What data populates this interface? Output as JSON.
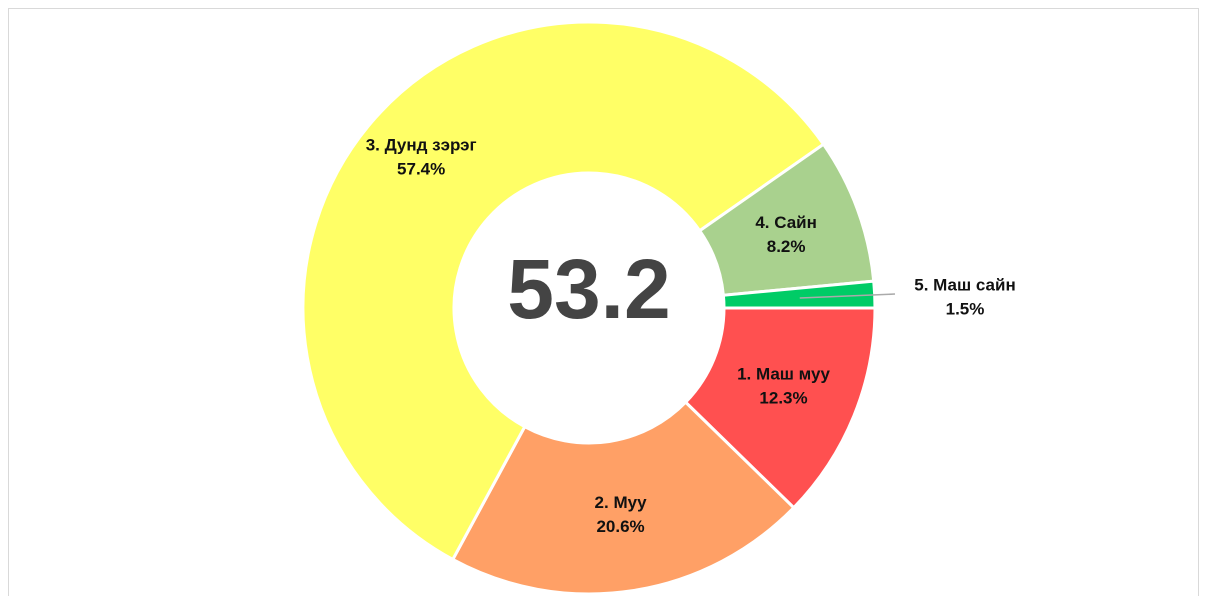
{
  "chart_data": {
    "type": "donut",
    "center_value": 53.2,
    "categories": [
      "1. Маш муу",
      "2. Муу",
      "3. Дунд зэрэг",
      "4. Сайн",
      "5. Маш сайн"
    ],
    "values": [
      12.3,
      20.6,
      57.4,
      8.2,
      1.5
    ],
    "value_labels": [
      "12.3%",
      "20.6%",
      "57.4%",
      "8.2%",
      "1.5%"
    ],
    "colors": [
      "#ff5050",
      "#ffa066",
      "#ffff66",
      "#a9d18e",
      "#00cc66"
    ]
  }
}
